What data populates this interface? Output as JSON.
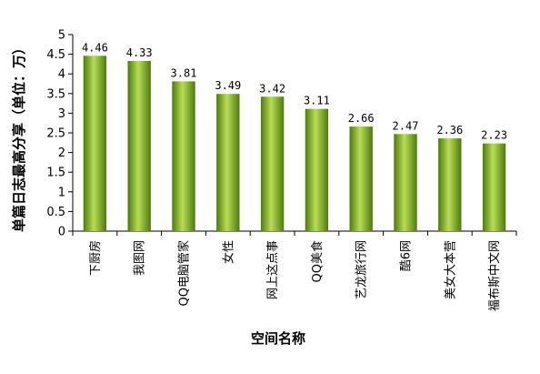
{
  "chart_data": {
    "type": "bar",
    "categories": [
      "下厨房",
      "我图网",
      "QQ电脑管家",
      "女性",
      "网上这点事",
      "QQ美食",
      "艺龙旅行网",
      "酷6网",
      "美女大本营",
      "福布斯中文网"
    ],
    "values": [
      4.46,
      4.33,
      3.81,
      3.49,
      3.42,
      3.11,
      2.66,
      2.47,
      2.36,
      2.23
    ],
    "data_labels": [
      "4.46",
      "4.33",
      "3.81",
      "3.49",
      "3.42",
      "3.11",
      "2.66",
      "2.47",
      "2.36",
      "2.23"
    ],
    "title": "",
    "xlabel": "空间名称",
    "ylabel": "单篇日志最高分享（单位：万）",
    "ylim": [
      0,
      5
    ],
    "yticks": [
      "0",
      "0.5",
      "1",
      "1.5",
      "2",
      "2.5",
      "3",
      "3.5",
      "4",
      "4.5",
      "5"
    ],
    "grid": false,
    "legend": "none",
    "colors": {
      "bar_dark": "#4d7a0c",
      "bar_light": "#b8dd55",
      "axis": "#000000"
    }
  }
}
